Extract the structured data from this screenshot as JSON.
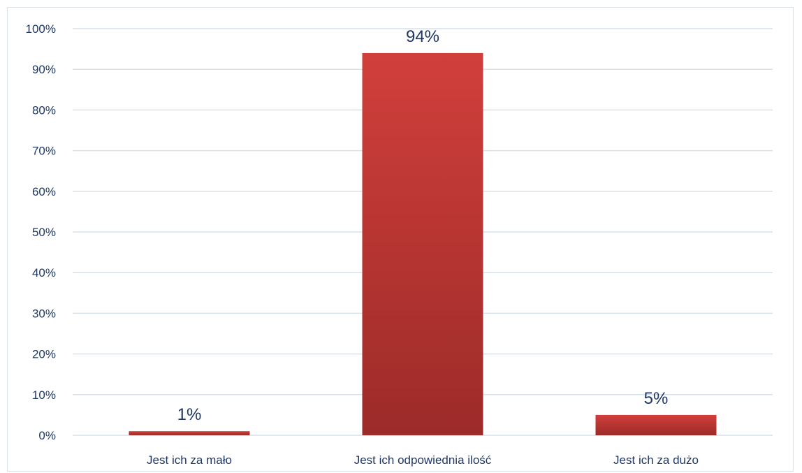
{
  "chart_data": {
    "type": "bar",
    "categories": [
      "Jest ich za mało",
      "Jest ich odpowiednia ilość",
      "Jest ich za dużo"
    ],
    "values": [
      1,
      94,
      5
    ],
    "data_labels": [
      "1%",
      "94%",
      "5%"
    ],
    "y_ticks": [
      "0%",
      "10%",
      "20%",
      "30%",
      "40%",
      "50%",
      "60%",
      "70%",
      "80%",
      "90%",
      "100%"
    ],
    "ylim": [
      0,
      100
    ],
    "grid": true,
    "legend": "none",
    "colors": {
      "bar_top": "#d13f3b",
      "bar_bottom": "#9c2b29",
      "grid": "#d9e1ea",
      "text": "#1f3864"
    }
  }
}
